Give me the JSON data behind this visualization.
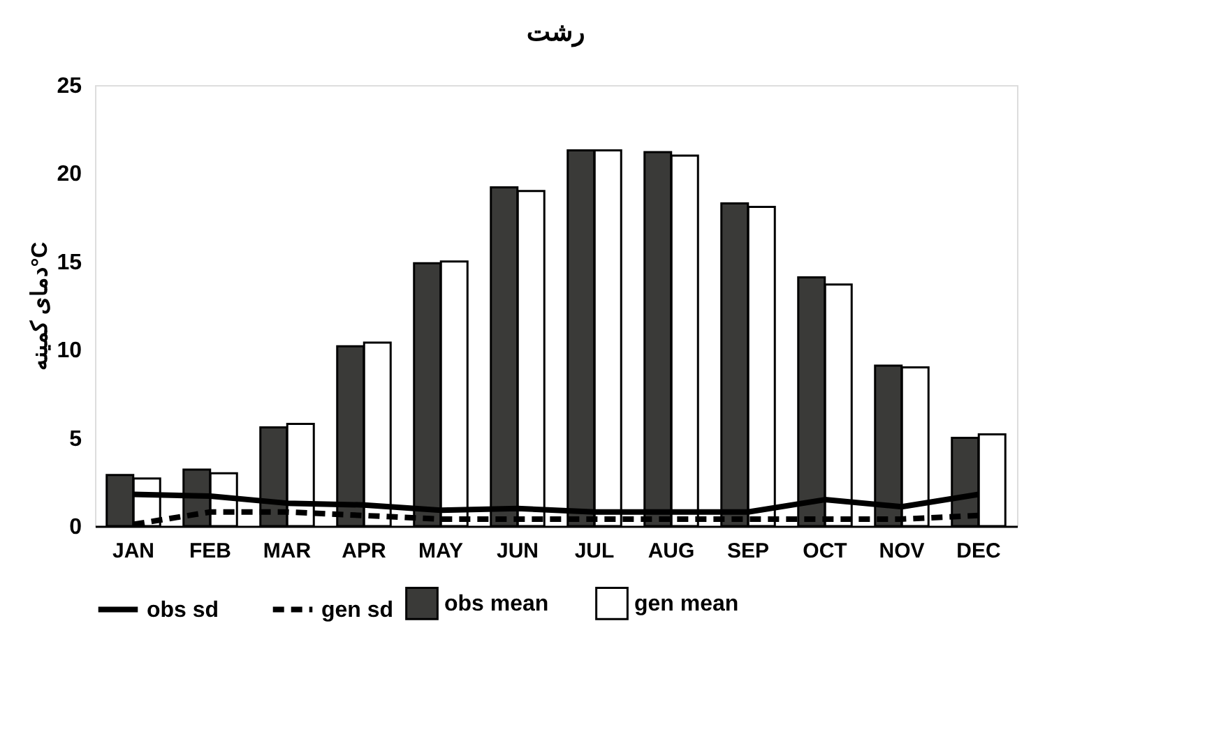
{
  "chart_data": {
    "type": "bar",
    "title": "رشت",
    "ylabel": "دمای کمینه°C",
    "categories": [
      "JAN",
      "FEB",
      "MAR",
      "APR",
      "MAY",
      "JUN",
      "JUL",
      "AUG",
      "SEP",
      "OCT",
      "NOV",
      "DEC"
    ],
    "series": [
      {
        "name": "obs mean",
        "color": "#3a3a38",
        "values": [
          2.9,
          3.2,
          5.6,
          10.2,
          14.9,
          19.2,
          21.3,
          21.2,
          18.3,
          14.1,
          9.1,
          5.0
        ]
      },
      {
        "name": "gen mean",
        "color": "#ffffff",
        "values": [
          2.7,
          3.0,
          5.8,
          10.4,
          15.0,
          19.0,
          21.3,
          21.0,
          18.1,
          13.7,
          9.0,
          5.2
        ]
      },
      {
        "name": "obs sd",
        "type": "line",
        "color": "#000000",
        "line_style": "solid",
        "values": [
          1.8,
          1.7,
          1.3,
          1.2,
          0.9,
          1.0,
          0.8,
          0.8,
          0.8,
          1.5,
          1.1,
          1.8
        ]
      },
      {
        "name": "gen sd",
        "type": "line",
        "color": "#000000",
        "line_style": "dashed",
        "values": [
          0.1,
          0.8,
          0.8,
          0.6,
          0.4,
          0.4,
          0.4,
          0.4,
          0.4,
          0.4,
          0.4,
          0.6
        ]
      }
    ],
    "ylim": [
      0,
      25
    ],
    "yticks": [
      0,
      5,
      10,
      15,
      20,
      25
    ],
    "grid": false,
    "legend": "bottom",
    "marker": "none"
  }
}
